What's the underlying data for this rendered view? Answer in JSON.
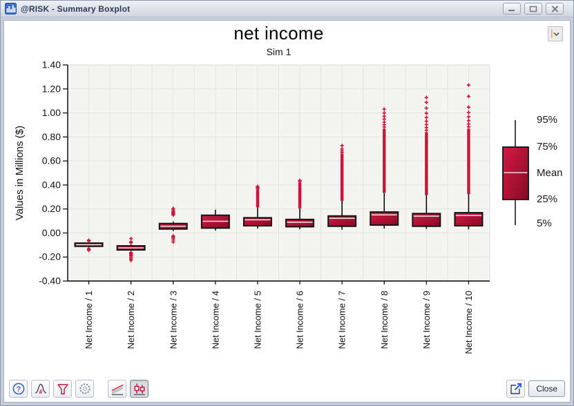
{
  "window": {
    "title": "@RISK - Summary Boxplot"
  },
  "titlebar": {
    "buttons": [
      {
        "name": "minimize",
        "icon": "minimize-icon"
      },
      {
        "name": "maximize",
        "icon": "maximize-icon"
      },
      {
        "name": "close",
        "icon": "close-icon"
      }
    ]
  },
  "chart_data": {
    "type": "boxplot",
    "title": "net income",
    "subtitle": "Sim 1",
    "ylabel": "Values in Millions ($)",
    "ylim": [
      -0.4,
      1.4
    ],
    "ytick_step": 0.2,
    "grid": true,
    "legend": {
      "position": "right",
      "labels": [
        "95%",
        "75%",
        "Mean",
        "25%",
        "5%"
      ]
    },
    "colors": {
      "box_light": "#d51a44",
      "box_dark": "#850b26",
      "outlier": "#d01238",
      "mean_line": "#eed9dd",
      "whisker": "#0a0a0a",
      "plot_bg": "#f4f4f2",
      "grid_line": "#e3e3e0",
      "axis": "#000000"
    },
    "categories": [
      "Net Income / 1",
      "Net Income / 2",
      "Net Income / 3",
      "Net Income / 4",
      "Net Income / 5",
      "Net Income / 6",
      "Net Income / 7",
      "Net Income / 8",
      "Net Income / 9",
      "Net Income / 10"
    ],
    "series": [
      {
        "category": "Net Income / 1",
        "p5": -0.12,
        "p25": -0.111,
        "mean": -0.098,
        "p75": -0.084,
        "p95": -0.073,
        "outliers_high": [
          -0.067,
          -0.06
        ],
        "outliers_low": [
          -0.131,
          -0.137,
          -0.144
        ],
        "outlier_column": null
      },
      {
        "category": "Net Income / 2",
        "p5": -0.152,
        "p25": -0.141,
        "mean": -0.124,
        "p75": -0.107,
        "p95": -0.096,
        "outliers_high": [
          -0.082,
          -0.073,
          -0.047
        ],
        "outliers_low": [
          -0.162,
          -0.168,
          -0.175,
          -0.183,
          -0.192,
          -0.204,
          -0.216,
          -0.228
        ],
        "outlier_column": null
      },
      {
        "category": "Net Income / 3",
        "p5": 0.016,
        "p25": 0.033,
        "mean": 0.056,
        "p75": 0.079,
        "p95": 0.096,
        "outliers_high": [
          0.15,
          0.157,
          0.164,
          0.172,
          0.181,
          0.193,
          0.205
        ],
        "outliers_low": [
          -0.024,
          -0.033,
          -0.044,
          -0.058,
          -0.075
        ],
        "outlier_column": null
      },
      {
        "category": "Net Income / 4",
        "p5": 0.021,
        "p25": 0.041,
        "mean": 0.098,
        "p75": 0.148,
        "p95": 0.194,
        "outliers_high": [],
        "outliers_low": [],
        "outlier_column": null
      },
      {
        "category": "Net Income / 5",
        "p5": 0.037,
        "p25": 0.06,
        "mean": 0.11,
        "p75": 0.127,
        "p95": 0.213,
        "outliers_high": [
          0.37,
          0.379,
          0.388
        ],
        "outliers_low": [],
        "outlier_column": [
          0.213,
          0.363
        ]
      },
      {
        "category": "Net Income / 6",
        "p5": 0.031,
        "p25": 0.052,
        "mean": 0.09,
        "p75": 0.113,
        "p95": 0.205,
        "outliers_high": [
          0.428,
          0.438
        ],
        "outliers_low": [],
        "outlier_column": [
          0.205,
          0.42
        ]
      },
      {
        "category": "Net Income / 7",
        "p5": 0.027,
        "p25": 0.056,
        "mean": 0.122,
        "p75": 0.142,
        "p95": 0.267,
        "outliers_high": [
          0.67,
          0.684,
          0.7,
          0.727
        ],
        "outliers_low": [],
        "outlier_column": [
          0.267,
          0.66
        ]
      },
      {
        "category": "Net Income / 8",
        "p5": 0.037,
        "p25": 0.066,
        "mean": 0.151,
        "p75": 0.175,
        "p95": 0.334,
        "outliers_high": [
          0.882,
          0.901,
          0.923,
          0.948,
          0.972,
          1.0,
          1.032
        ],
        "outliers_low": [],
        "outlier_column": [
          0.334,
          0.868
        ]
      },
      {
        "category": "Net Income / 9",
        "p5": 0.034,
        "p25": 0.056,
        "mean": 0.14,
        "p75": 0.162,
        "p95": 0.315,
        "outliers_high": [
          0.856,
          0.878,
          0.903,
          0.931,
          0.962,
          0.998,
          1.04,
          1.088,
          1.128
        ],
        "outliers_low": [],
        "outlier_column": [
          0.315,
          0.84
        ]
      },
      {
        "category": "Net Income / 10",
        "p5": 0.03,
        "p25": 0.06,
        "mean": 0.146,
        "p75": 0.169,
        "p95": 0.324,
        "outliers_high": [
          0.884,
          0.908,
          0.936,
          0.968,
          1.004,
          1.048,
          1.138,
          1.232
        ],
        "outliers_low": [],
        "outlier_column": [
          0.324,
          0.868
        ]
      }
    ]
  },
  "toolbar": {
    "left_buttons": [
      {
        "name": "help",
        "icon": "question-circle-icon"
      },
      {
        "name": "distribution",
        "icon": "bell-curve-icon"
      },
      {
        "name": "filter",
        "icon": "funnel-icon"
      },
      {
        "name": "settings",
        "icon": "gear-icon"
      }
    ],
    "view_buttons": [
      {
        "name": "trend-view",
        "icon": "trend-lines-icon",
        "selected": false
      },
      {
        "name": "boxplot-view",
        "icon": "boxplot-icon",
        "selected": true
      }
    ],
    "export_button": {
      "icon": "export-arrow-icon"
    },
    "close_label": "Close"
  }
}
